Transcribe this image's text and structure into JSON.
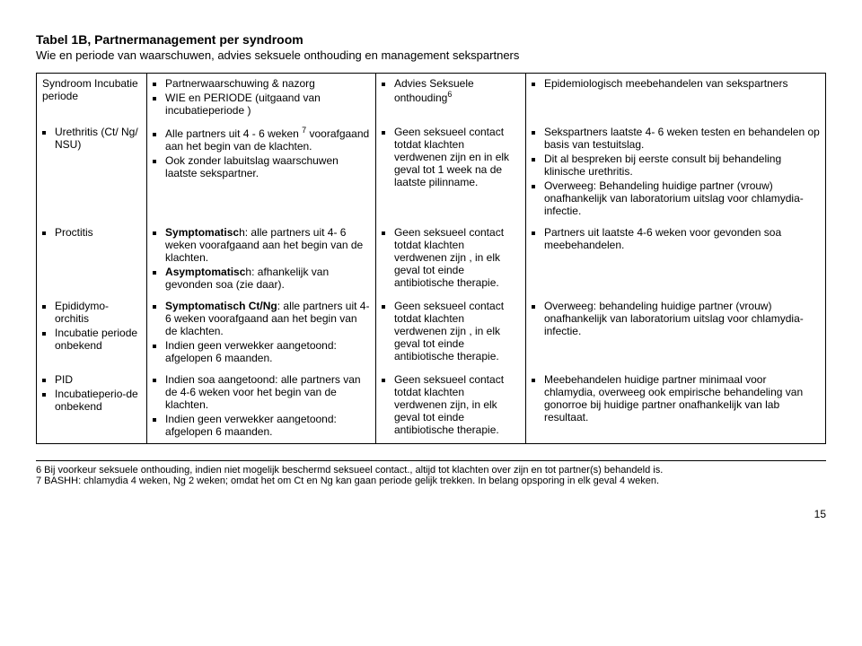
{
  "title": "Tabel 1B, Partnermanagement per syndroom",
  "subtitle": "Wie en periode van waarschuwen, advies seksuele onthouding en management sekspartners",
  "columns": {
    "c1": "Syndroom Incubatie periode",
    "c2_l1": "Partnerwaarschuwing & nazorg",
    "c2_l2": "WIE en PERIODE (uitgaand van incubatieperiode )",
    "c3_l1": "Advies Seksuele onthouding",
    "c3_sup": "6",
    "c4_l1": "Epidemiologisch meebehandelen van sekspartners"
  },
  "rows": [
    {
      "c1": [
        "Urethritis (Ct/ Ng/ NSU)"
      ],
      "c2": [
        "Alle partners uit 4 - 6 weken <sup>7</sup> voorafgaand aan het begin van de klachten.",
        "Ook zonder labuitslag waarschuwen laatste sekspartner."
      ],
      "c3": [
        "Geen seksueel contact totdat klachten verdwenen zijn en in elk geval tot 1 week na de laatste pilinname."
      ],
      "c4": [
        "Sekspartners laatste 4- 6 weken testen en behandelen op basis van testuitslag.",
        "Dit al bespreken bij eerste consult bij behandeling klinische urethritis.",
        "Overweeg: Behandeling huidige partner (vrouw) onafhankelijk van laboratorium uitslag voor chlamydia-infectie."
      ]
    },
    {
      "c1": [
        "Proctitis"
      ],
      "c2": [
        "<b>Symptomatisc</b>h: alle partners uit 4- 6 weken voorafgaand aan het begin van de klachten.",
        "<b>Asymptomatisc</b>h: afhankelijk van gevonden soa (zie daar)."
      ],
      "c3": [
        "Geen seksueel contact totdat klachten verdwenen zijn , in elk geval tot einde antibiotische therapie."
      ],
      "c4": [
        "Partners uit laatste 4-6 weken voor gevonden soa meebehandelen."
      ]
    },
    {
      "c1": [
        "Epididymo-orchitis",
        "Incubatie periode onbekend"
      ],
      "c2": [
        "<b>Symptomatisch Ct/Ng</b>: alle partners uit 4- 6 weken voorafgaand aan het begin van de klachten.",
        "Indien geen verwekker aangetoond: afgelopen 6 maanden."
      ],
      "c3": [
        "Geen seksueel contact totdat klachten verdwenen zijn , in elk geval tot einde antibiotische therapie."
      ],
      "c4": [
        "Overweeg: behandeling huidige partner (vrouw) onafhankelijk van laboratorium uitslag voor chlamydia-infectie."
      ]
    },
    {
      "c1": [
        "PID",
        "Incubatieperio-de onbekend"
      ],
      "c2": [
        "Indien soa aangetoond: alle partners van de 4-6 weken voor het begin van de klachten.",
        "Indien geen verwekker aangetoond: afgelopen 6 maanden."
      ],
      "c3": [
        "Geen seksueel contact totdat klachten verdwenen zijn, in elk geval tot einde antibiotische therapie."
      ],
      "c4": [
        "Meebehandelen huidige partner minimaal voor chlamydia, overweeg ook empirische behandeling van gonorroe bij huidige partner onafhankelijk van lab resultaat."
      ]
    }
  ],
  "footnotes": {
    "f6": "6 Bij voorkeur seksuele onthouding,  indien niet mogelijk beschermd seksueel contact., altijd tot klachten over zijn en tot partner(s) behandeld is.",
    "f7": "7 BASHH: chlamydia 4 weken,  Ng 2 weken; omdat het om Ct en Ng kan gaan periode gelijk trekken. In belang opsporing in elk geval 4 weken."
  },
  "pagenum": "15"
}
